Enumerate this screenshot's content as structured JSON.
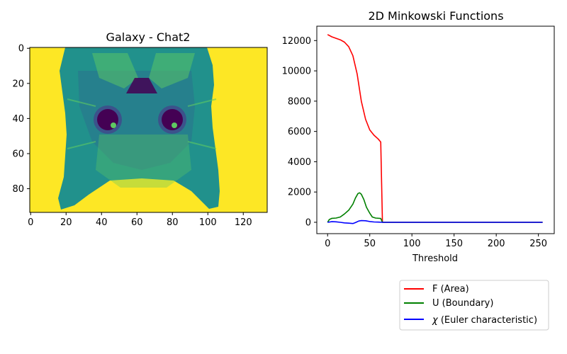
{
  "chart_data": [
    {
      "type": "heatmap",
      "title": "Galaxy - Chat2",
      "xlim": [
        -0.5,
        133.5
      ],
      "ylim": [
        93.5,
        -0.5
      ],
      "x_ticks": [
        0,
        20,
        40,
        60,
        80,
        100,
        120
      ],
      "y_ticks": [
        0,
        20,
        40,
        60,
        80
      ],
      "colormap": "viridis",
      "image_description_values": {
        "background": "yellow (high)",
        "cat_face": "teal/green (mid)",
        "eyes": "dark purple (low)"
      },
      "colors": {
        "high": "#fde725",
        "mid_light": "#5ec962",
        "mid": "#21918c",
        "mid_dark": "#2c728e",
        "low": "#440154",
        "low_mid": "#3b528b"
      }
    },
    {
      "type": "line",
      "title": "2D Minkowski Functions",
      "xlabel": "Threshold",
      "xlim": [
        -12.8,
        268.8
      ],
      "ylim": [
        -750,
        12950
      ],
      "x_ticks": [
        0,
        50,
        100,
        150,
        200,
        250
      ],
      "y_ticks": [
        0,
        2000,
        4000,
        6000,
        8000,
        10000,
        12000
      ],
      "legend_position": "bottom-right, outside",
      "series": [
        {
          "name": "F (Area)",
          "color": "#ff0000",
          "points": [
            [
              0,
              12400
            ],
            [
              5,
              12250
            ],
            [
              10,
              12150
            ],
            [
              15,
              12050
            ],
            [
              20,
              11900
            ],
            [
              25,
              11600
            ],
            [
              30,
              11000
            ],
            [
              35,
              9800
            ],
            [
              40,
              8000
            ],
            [
              45,
              6800
            ],
            [
              50,
              6100
            ],
            [
              55,
              5750
            ],
            [
              60,
              5500
            ],
            [
              63,
              5300
            ],
            [
              65,
              0
            ],
            [
              80,
              0
            ],
            [
              120,
              0
            ],
            [
              160,
              0
            ],
            [
              200,
              0
            ],
            [
              255,
              0
            ]
          ]
        },
        {
          "name": "U (Boundary)",
          "color": "#008000",
          "points": [
            [
              0,
              0
            ],
            [
              2,
              180
            ],
            [
              5,
              260
            ],
            [
              10,
              280
            ],
            [
              15,
              350
            ],
            [
              20,
              550
            ],
            [
              25,
              800
            ],
            [
              30,
              1200
            ],
            [
              33,
              1600
            ],
            [
              36,
              1900
            ],
            [
              38,
              1950
            ],
            [
              40,
              1850
            ],
            [
              43,
              1500
            ],
            [
              46,
              1000
            ],
            [
              50,
              600
            ],
            [
              53,
              350
            ],
            [
              57,
              280
            ],
            [
              63,
              250
            ],
            [
              65,
              0
            ],
            [
              80,
              0
            ],
            [
              120,
              0
            ],
            [
              160,
              0
            ],
            [
              200,
              0
            ],
            [
              255,
              0
            ]
          ]
        },
        {
          "name": "χ (Euler characteristic)",
          "name_prefix": "χ",
          "name_rest": " (Euler characteristic)",
          "color": "#0000ff",
          "points": [
            [
              0,
              0
            ],
            [
              5,
              40
            ],
            [
              10,
              30
            ],
            [
              15,
              0
            ],
            [
              20,
              -40
            ],
            [
              25,
              -60
            ],
            [
              30,
              -80
            ],
            [
              33,
              -20
            ],
            [
              37,
              80
            ],
            [
              40,
              110
            ],
            [
              45,
              100
            ],
            [
              50,
              50
            ],
            [
              55,
              20
            ],
            [
              60,
              10
            ],
            [
              65,
              0
            ],
            [
              100,
              0
            ],
            [
              150,
              0
            ],
            [
              200,
              0
            ],
            [
              255,
              0
            ]
          ]
        }
      ]
    }
  ]
}
